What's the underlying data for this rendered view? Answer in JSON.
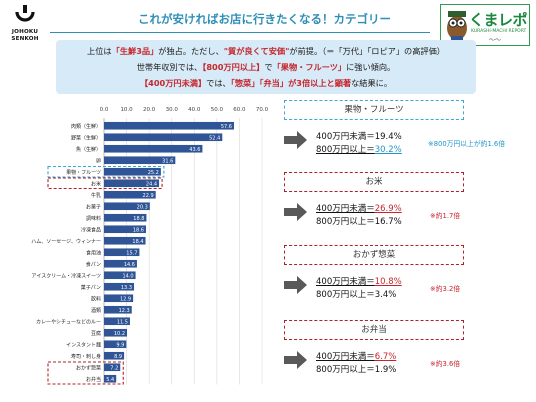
{
  "header": {
    "brand": [
      "JOHOKU",
      "SENKOH"
    ],
    "title": "これが安ければお店に行きたくなる！カテゴリー",
    "partner_logo_text": "くまレポ",
    "partner_logo_sub": "KURASHI-MACHI REPORT"
  },
  "summary": {
    "line1": [
      {
        "t": "上位は",
        "hl": false
      },
      {
        "t": "「生鮮3品」",
        "hl": true
      },
      {
        "t": "が独占。ただし、",
        "hl": false
      },
      {
        "t": "\"質が良くて安価\"",
        "hl": true
      },
      {
        "t": "が前提。（＝「万代」「ロピア」の高評価）",
        "hl": false
      }
    ],
    "line2": [
      {
        "t": "世帯年収別では、",
        "hl": false
      },
      {
        "t": "【800万円以上】",
        "hl": true
      },
      {
        "t": "で",
        "hl": false
      },
      {
        "t": "「果物・フルーツ」",
        "hl": true
      },
      {
        "t": "に強い傾向。",
        "hl": false
      }
    ],
    "line3": [
      {
        "t": "【400万円未満】",
        "hl": true
      },
      {
        "t": "では、",
        "hl": false
      },
      {
        "t": "「惣菜」「弁当」",
        "hl": true
      },
      {
        "t": "が3倍以上と顕著",
        "hl": true
      },
      {
        "t": "な結果に。",
        "hl": false
      }
    ]
  },
  "chart_data": {
    "type": "bar",
    "orientation": "horizontal",
    "x_ticks": [
      "0.0",
      "10.0",
      "20.0",
      "30.0",
      "40.0",
      "50.0",
      "60.0",
      "70.0"
    ],
    "xlim": [
      0,
      70
    ],
    "categories": [
      "肉類（生鮮）",
      "野菜（生鮮）",
      "魚（生鮮）",
      "卵",
      "果物・フルーツ",
      "お米",
      "牛乳",
      "お菓子",
      "調味料",
      "冷凍食品",
      "ハム、ソーセージ、ウィンナー",
      "食用油",
      "食パン",
      "アイスクリーム・冷凍スイーツ",
      "菓子パン",
      "飲料",
      "酒類",
      "カレーやシチューなどのルー",
      "豆腐",
      "インスタント麺",
      "寿司・刺し身",
      "おかず惣菜",
      "お弁当"
    ],
    "values": [
      57.6,
      52.4,
      43.6,
      31.6,
      25.2,
      24.4,
      22.9,
      20.3,
      18.8,
      18.6,
      18.4,
      15.7,
      14.6,
      14.0,
      13.3,
      12.9,
      12.3,
      11.5,
      10.2,
      9.9,
      8.9,
      7.2,
      5.4
    ],
    "value_labels": [
      "57.6",
      "52.4",
      "43.6",
      "31.6",
      "25.2",
      "24.4",
      "22.9",
      "20.3",
      "18.8",
      "18.6",
      "18.4",
      "15.7",
      "14.6",
      "14.0",
      "13.3",
      "12.9",
      "12.3",
      "11.5",
      "10.2",
      "9.9",
      "8.9",
      "7.2",
      "5.4"
    ],
    "bar_color": "#2f5597",
    "grid": true,
    "highlight_blue": [
      "果物・フルーツ"
    ],
    "highlight_red": [
      "お米",
      "おかず惣菜",
      "お弁当"
    ]
  },
  "callouts": [
    {
      "label": "果物・フルーツ",
      "style": "blue",
      "low": "400万円未満＝",
      "low_val": "19.4%",
      "high": "800万円以上＝",
      "high_val": "30.2%",
      "note": "※800万円以上が約1.6倍",
      "emph": "high"
    },
    {
      "label": "お米",
      "style": "red",
      "low": "400万円未満＝",
      "low_val": "26.9%",
      "high": "800万円以上＝",
      "high_val": "16.7%",
      "note": "※約1.7倍",
      "emph": "low"
    },
    {
      "label": "おかず惣菜",
      "style": "red",
      "low": "400万円未満＝",
      "low_val": "10.8%",
      "high": "800万円以上＝",
      "high_val": "3.4%",
      "note": "※約3.2倍",
      "emph": "low"
    },
    {
      "label": "お弁当",
      "style": "red",
      "low": "400万円未満＝",
      "low_val": "6.7%",
      "high": "800万円以上＝",
      "high_val": "1.9%",
      "note": "※約3.6倍",
      "emph": "low"
    }
  ]
}
